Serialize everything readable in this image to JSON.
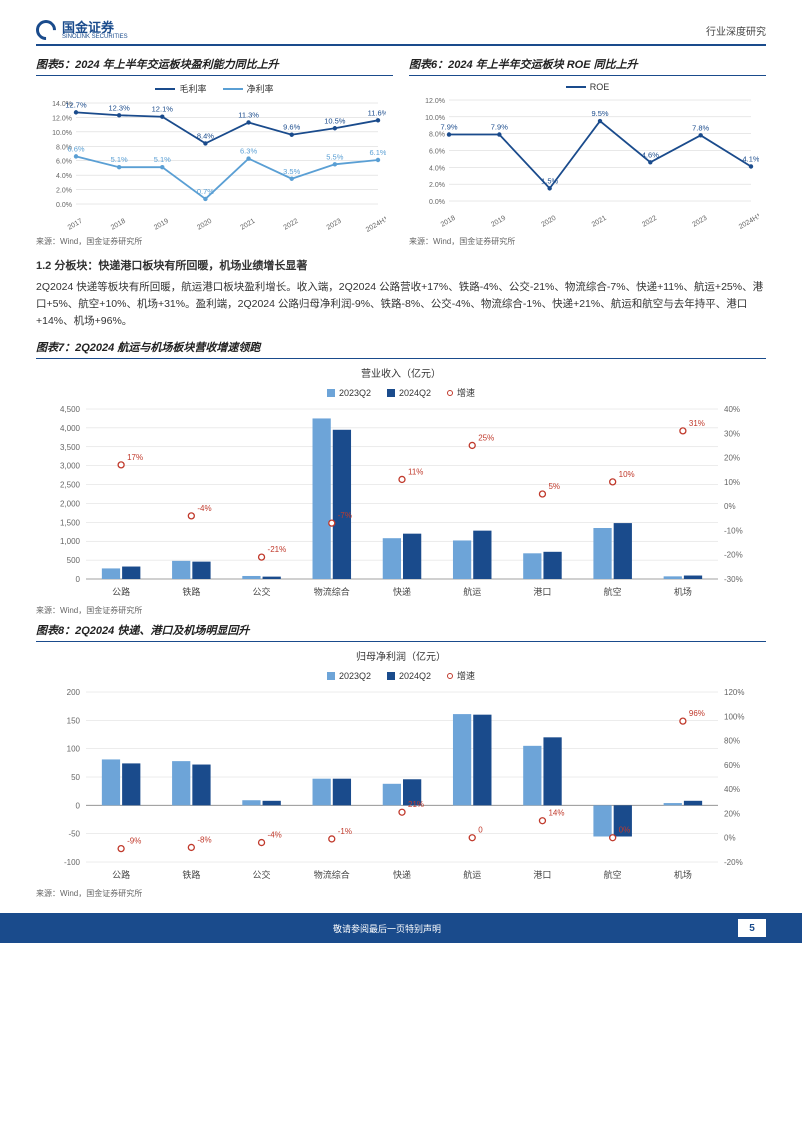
{
  "header": {
    "logo_cn": "国金证券",
    "logo_en": "SINOLINK SECURITIES",
    "doc_type": "行业深度研究"
  },
  "chart5": {
    "title": "图表5：2024 年上半年交运板块盈利能力同比上升",
    "type": "line",
    "series": [
      {
        "name": "毛利率",
        "color": "#1a4b8c",
        "values": [
          12.7,
          12.3,
          12.1,
          8.4,
          11.3,
          9.6,
          10.5,
          11.6
        ],
        "labels": [
          "12.7%",
          "12.3%",
          "12.1%",
          "8.4%",
          "11.3%",
          "9.6%",
          "10.5%",
          "11.6%"
        ]
      },
      {
        "name": "净利率",
        "color": "#5a9fd4",
        "values": [
          6.6,
          5.1,
          5.1,
          0.7,
          6.3,
          3.5,
          5.5,
          6.1
        ],
        "labels": [
          "6.6%",
          "5.1%",
          "5.1%",
          "0.7%",
          "6.3%",
          "3.5%",
          "5.5%",
          "6.1%"
        ]
      }
    ],
    "x_labels": [
      "2017",
      "2018",
      "2019",
      "2020",
      "2021",
      "2022",
      "2023",
      "2024H1"
    ],
    "y_ticks": [
      "0.0%",
      "2.0%",
      "4.0%",
      "6.0%",
      "8.0%",
      "10.0%",
      "12.0%",
      "14.0%"
    ],
    "ylim": [
      0,
      14
    ],
    "source": "来源：Wind，国金证券研究所"
  },
  "chart6": {
    "title": "图表6：2024 年上半年交运板块 ROE 同比上升",
    "type": "line",
    "series": [
      {
        "name": "ROE",
        "color": "#1a4b8c",
        "values": [
          7.9,
          7.9,
          1.5,
          9.5,
          4.6,
          7.8,
          4.1
        ],
        "labels": [
          "7.9%",
          "7.9%",
          "1.5%",
          "9.5%",
          "4.6%",
          "7.8%",
          "4.1%"
        ]
      }
    ],
    "x_labels": [
      "2018",
      "2019",
      "2020",
      "2021",
      "2022",
      "2023",
      "2024H1"
    ],
    "y_ticks": [
      "0.0%",
      "2.0%",
      "4.0%",
      "6.0%",
      "8.0%",
      "10.0%",
      "12.0%"
    ],
    "ylim": [
      0,
      12
    ],
    "source": "来源：Wind，国金证券研究所"
  },
  "section": {
    "heading": "1.2 分板块：快递港口板块有所回暖，机场业绩增长显著",
    "body": "2Q2024 快递等板块有所回暖，航运港口板块盈利增长。收入端，2Q2024 公路营收+17%、铁路-4%、公交-21%、物流综合-7%、快递+11%、航运+25%、港口+5%、航空+10%、机场+31%。盈利端，2Q2024 公路归母净利润-9%、铁路-8%、公交-4%、物流综合-1%、快递+21%、航运和航空与去年持平、港口+14%、机场+96%。"
  },
  "chart7": {
    "title": "图表7：2Q2024 航运与机场板块营收增速领跑",
    "inner_title": "营业收入（亿元）",
    "type": "bar+line",
    "categories": [
      "公路",
      "铁路",
      "公交",
      "物流综合",
      "快递",
      "航运",
      "港口",
      "航空",
      "机场"
    ],
    "series": [
      {
        "name": "2023Q2",
        "color": "#6da4d8",
        "values": [
          280,
          480,
          80,
          4250,
          1080,
          1020,
          680,
          1350,
          70
        ]
      },
      {
        "name": "2024Q2",
        "color": "#1a4b8c",
        "values": [
          330,
          460,
          63,
          3950,
          1200,
          1280,
          720,
          1480,
          92
        ]
      }
    ],
    "growth": {
      "name": "增速",
      "color": "#c0392b",
      "values": [
        17,
        -4,
        -21,
        -7,
        11,
        25,
        5,
        10,
        31
      ],
      "labels": [
        "17%",
        "-4%",
        "-21%",
        "-7%",
        "11%",
        "25%",
        "5%",
        "10%",
        "31%"
      ]
    },
    "y_left_ticks": [
      "0",
      "500",
      "1,000",
      "1,500",
      "2,000",
      "2,500",
      "3,000",
      "3,500",
      "4,000",
      "4,500"
    ],
    "y_left_lim": [
      0,
      4500
    ],
    "y_right_ticks": [
      "-30%",
      "-20%",
      "-10%",
      "0%",
      "10%",
      "20%",
      "30%",
      "40%"
    ],
    "y_right_lim": [
      -30,
      40
    ],
    "source": "来源：Wind，国金证券研究所"
  },
  "chart8": {
    "title": "图表8：2Q2024 快递、港口及机场明显回升",
    "inner_title": "归母净利润（亿元）",
    "type": "bar+line",
    "categories": [
      "公路",
      "铁路",
      "公交",
      "物流综合",
      "快递",
      "航运",
      "港口",
      "航空",
      "机场"
    ],
    "series": [
      {
        "name": "2023Q2",
        "color": "#6da4d8",
        "values": [
          81,
          78,
          9,
          47,
          38,
          161,
          105,
          -55,
          4
        ]
      },
      {
        "name": "2024Q2",
        "color": "#1a4b8c",
        "values": [
          74,
          72,
          8,
          47,
          46,
          160,
          120,
          -55,
          8
        ]
      }
    ],
    "growth": {
      "name": "增速",
      "color": "#c0392b",
      "values": [
        -9,
        -8,
        -4,
        -1,
        21,
        0,
        14,
        0,
        96
      ],
      "labels": [
        "-9%",
        "-8%",
        "-4%",
        "-1%",
        "21%",
        "0",
        "14%",
        "0%",
        "96%"
      ]
    },
    "y_left_ticks": [
      "-100",
      "-50",
      "0",
      "50",
      "100",
      "150",
      "200"
    ],
    "y_left_lim": [
      -100,
      200
    ],
    "y_right_ticks": [
      "-20%",
      "0%",
      "20%",
      "40%",
      "60%",
      "80%",
      "100%",
      "120%"
    ],
    "y_right_lim": [
      -20,
      120
    ],
    "source": "来源：Wind，国金证券研究所"
  },
  "footer": {
    "text": "敬请参阅最后一页特别声明",
    "page": "5"
  },
  "colors": {
    "brand": "#1a4b8c",
    "light_blue": "#6da4d8",
    "red": "#c0392b",
    "grid": "#d0d0d0",
    "text": "#333333"
  }
}
